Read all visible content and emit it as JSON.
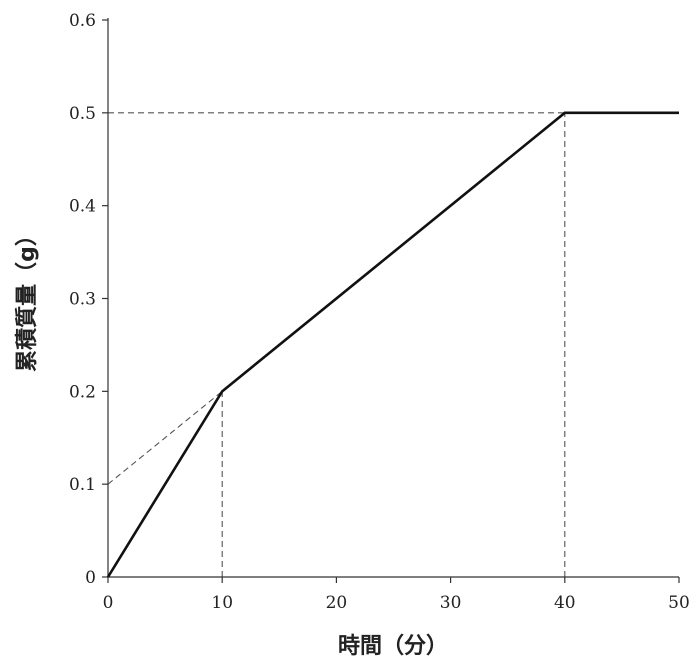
{
  "chart_data": {
    "type": "line",
    "xlabel": "時間（分）",
    "ylabel": "累積質量（g）",
    "xlim": [
      0,
      50
    ],
    "ylim": [
      0,
      0.6
    ],
    "x_ticks": [
      0,
      10,
      20,
      30,
      40,
      50
    ],
    "x_tick_labels": [
      "0",
      "10",
      "20",
      "30",
      "40",
      "50"
    ],
    "y_ticks": [
      0,
      0.1,
      0.2,
      0.3,
      0.4,
      0.5,
      0.6
    ],
    "y_tick_labels": [
      "0",
      "0.1",
      "0.2",
      "0.3",
      "0.4",
      "0.5",
      "0.6"
    ],
    "grid": false,
    "series": [
      {
        "x": [
          0,
          10,
          40,
          50
        ],
        "y": [
          0,
          0.2,
          0.5,
          0.5
        ],
        "style": "solid"
      }
    ],
    "guides": [
      {
        "x": [
          0,
          10
        ],
        "y": [
          0.1,
          0.2
        ],
        "style": "dashed"
      },
      {
        "x": [
          0,
          40
        ],
        "y": [
          0.5,
          0.5
        ],
        "style": "dashed"
      },
      {
        "x": [
          10,
          10
        ],
        "y": [
          0,
          0.2
        ],
        "style": "dashed"
      },
      {
        "x": [
          40,
          40
        ],
        "y": [
          0,
          0.5
        ],
        "style": "dashed"
      }
    ]
  }
}
